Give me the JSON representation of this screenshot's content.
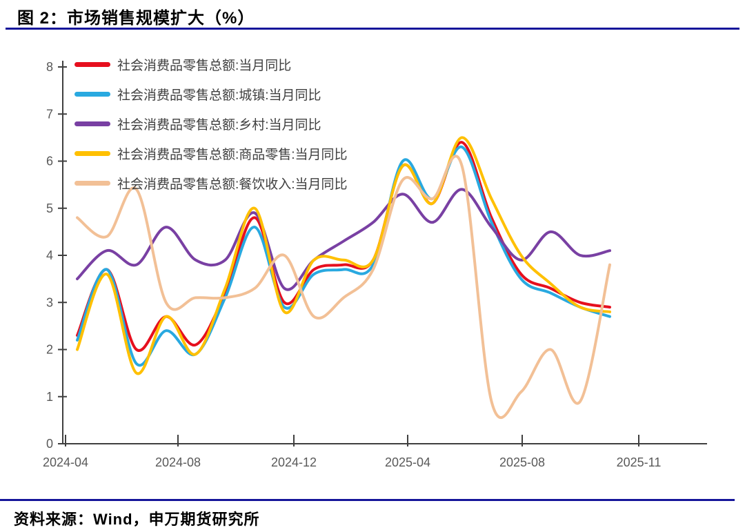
{
  "header": {
    "title": "图 2：市场销售规模扩大（%）"
  },
  "footer": {
    "source": "资料来源：Wind，申万期货研究所"
  },
  "colors": {
    "rule_navy": "#15159a",
    "axis_line": "#3f3f3f",
    "tick_label": "#595959",
    "legend_label": "#3f3f3f",
    "background": "#ffffff"
  },
  "chart_data": {
    "type": "line",
    "title": "图 2：市场销售规模扩大（%）",
    "smooth": true,
    "grid": false,
    "legend_position": "top-left-inside",
    "ylim": [
      0,
      8
    ],
    "y_ticks": [
      "0",
      "1",
      "2",
      "3",
      "4",
      "5",
      "6",
      "7",
      "8"
    ],
    "x_tick_labels": [
      "2024-04",
      "2024-08",
      "2024-12",
      "2025-04",
      "2025-08",
      "2025-11"
    ],
    "x": [
      "2024-04",
      "2024-05",
      "2024-06",
      "2024-07",
      "2024-08",
      "2024-09",
      "2024-10",
      "2024-11",
      "2024-12",
      "2025-01",
      "2025-02",
      "2025-03",
      "2025-04",
      "2025-05",
      "2025-06",
      "2025-07",
      "2025-08",
      "2025-09",
      "2025-10"
    ],
    "series": [
      {
        "name": "社会消费品零售总额:当月同比",
        "color": "#e60f1e",
        "values": [
          2.3,
          3.7,
          2.0,
          2.7,
          2.1,
          3.2,
          4.8,
          3.0,
          3.7,
          3.8,
          3.9,
          5.9,
          5.1,
          6.4,
          4.8,
          3.6,
          3.3,
          3.0,
          2.9
        ]
      },
      {
        "name": "社会消费品零售总额:城镇:当月同比",
        "color": "#29a9e0",
        "values": [
          2.2,
          3.7,
          1.7,
          2.4,
          1.9,
          3.1,
          4.6,
          2.9,
          3.6,
          3.7,
          3.8,
          6.0,
          5.2,
          6.3,
          4.7,
          3.5,
          3.2,
          2.9,
          2.7
        ]
      },
      {
        "name": "社会消费品零售总额:乡村:当月同比",
        "color": "#7940a3",
        "values": [
          3.5,
          4.1,
          3.8,
          4.6,
          3.9,
          3.9,
          4.9,
          3.3,
          3.9,
          4.3,
          4.7,
          5.3,
          4.7,
          5.4,
          4.6,
          3.9,
          4.5,
          4.0,
          4.1
        ]
      },
      {
        "name": "社会消费品零售总额:商品零售:当月同比",
        "color": "#ffc000",
        "values": [
          2.0,
          3.6,
          1.5,
          2.7,
          1.9,
          3.3,
          5.0,
          2.8,
          3.9,
          3.9,
          3.9,
          5.9,
          5.1,
          6.5,
          5.2,
          4.0,
          3.4,
          2.9,
          2.8
        ]
      },
      {
        "name": "社会消费品零售总额:餐饮收入:当月同比",
        "color": "#f2c096",
        "values": [
          4.8,
          4.4,
          5.4,
          3.0,
          3.1,
          3.1,
          3.3,
          4.0,
          2.7,
          3.1,
          3.7,
          5.6,
          5.2,
          5.9,
          0.9,
          1.1,
          2.0,
          0.9,
          3.8
        ]
      }
    ]
  }
}
